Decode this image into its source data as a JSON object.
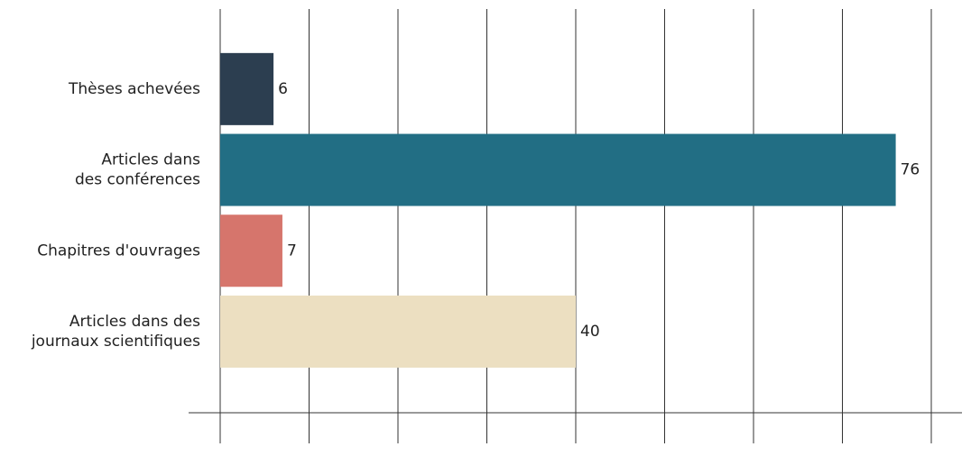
{
  "chart_data": {
    "type": "hbar",
    "categories": [
      [
        "Thèses achevées"
      ],
      [
        "Articles dans",
        "des conférences"
      ],
      [
        "Chapitres d'ouvrages"
      ],
      [
        "Articles dans des",
        "journaux scientifiques"
      ]
    ],
    "values": [
      6,
      76,
      7,
      40
    ],
    "colors": [
      "#2c3e50",
      "#226e84",
      "#d6756c",
      "#ecdfc1"
    ],
    "xlim": [
      0,
      80
    ],
    "xticks": [
      0,
      10,
      20,
      30,
      40,
      50,
      60,
      70,
      80
    ],
    "grid": true
  }
}
